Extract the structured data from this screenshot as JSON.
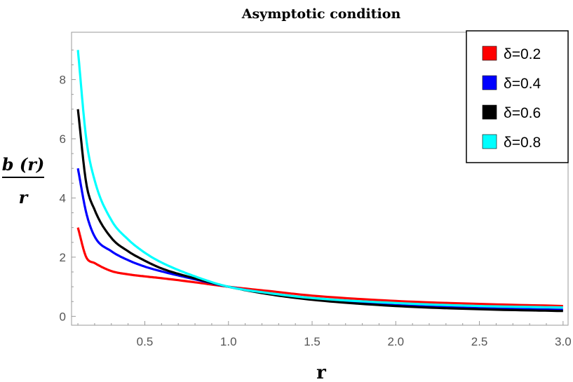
{
  "chart_data": {
    "type": "line",
    "title": "Asymptotic condition",
    "xlabel": "r",
    "ylabel": {
      "numerator": "b (r)",
      "denominator": "r"
    },
    "xlim": [
      0.1,
      3.0
    ],
    "ylim": [
      -0.3,
      9.6
    ],
    "xticks": [
      0.5,
      1.0,
      1.5,
      2.0,
      2.5,
      3.0
    ],
    "xtick_labels": [
      "0.5",
      "1.0",
      "1.5",
      "2.0",
      "2.5",
      "3.0"
    ],
    "yticks": [
      0,
      2,
      4,
      6,
      8
    ],
    "ytick_labels": [
      "0",
      "2",
      "4",
      "6",
      "8"
    ],
    "grid": false,
    "legend_position": "top-right",
    "series": [
      {
        "name": "δ=0.2",
        "color": "#ff0000",
        "x": [
          0.1,
          0.15,
          0.2,
          0.3,
          0.4,
          0.5,
          0.6,
          0.8,
          1.0,
          1.25,
          1.5,
          2.0,
          2.5,
          3.0
        ],
        "y": [
          3.0,
          2.0,
          1.8,
          1.53,
          1.42,
          1.35,
          1.29,
          1.15,
          1.0,
          0.85,
          0.7,
          0.52,
          0.42,
          0.35
        ]
      },
      {
        "name": "δ=0.4",
        "color": "#0000ff",
        "x": [
          0.1,
          0.15,
          0.2,
          0.3,
          0.4,
          0.5,
          0.6,
          0.8,
          1.0,
          1.25,
          1.5,
          2.0,
          2.5,
          3.0
        ],
        "y": [
          5.0,
          3.5,
          2.7,
          2.2,
          1.9,
          1.68,
          1.52,
          1.25,
          1.0,
          0.76,
          0.58,
          0.38,
          0.28,
          0.22
        ]
      },
      {
        "name": "δ=0.6",
        "color": "#000000",
        "x": [
          0.1,
          0.15,
          0.2,
          0.3,
          0.4,
          0.5,
          0.6,
          0.8,
          1.0,
          1.25,
          1.5,
          2.0,
          2.5,
          3.0
        ],
        "y": [
          7.0,
          4.5,
          3.6,
          2.65,
          2.2,
          1.88,
          1.62,
          1.28,
          1.0,
          0.74,
          0.56,
          0.35,
          0.24,
          0.18
        ]
      },
      {
        "name": "δ=0.8",
        "color": "#00ffff",
        "x": [
          0.1,
          0.15,
          0.2,
          0.3,
          0.4,
          0.5,
          0.6,
          0.8,
          1.0,
          1.25,
          1.5,
          2.0,
          2.5,
          3.0
        ],
        "y": [
          9.0,
          6.0,
          4.6,
          3.25,
          2.6,
          2.15,
          1.82,
          1.35,
          1.0,
          0.78,
          0.62,
          0.45,
          0.35,
          0.3
        ]
      }
    ]
  }
}
